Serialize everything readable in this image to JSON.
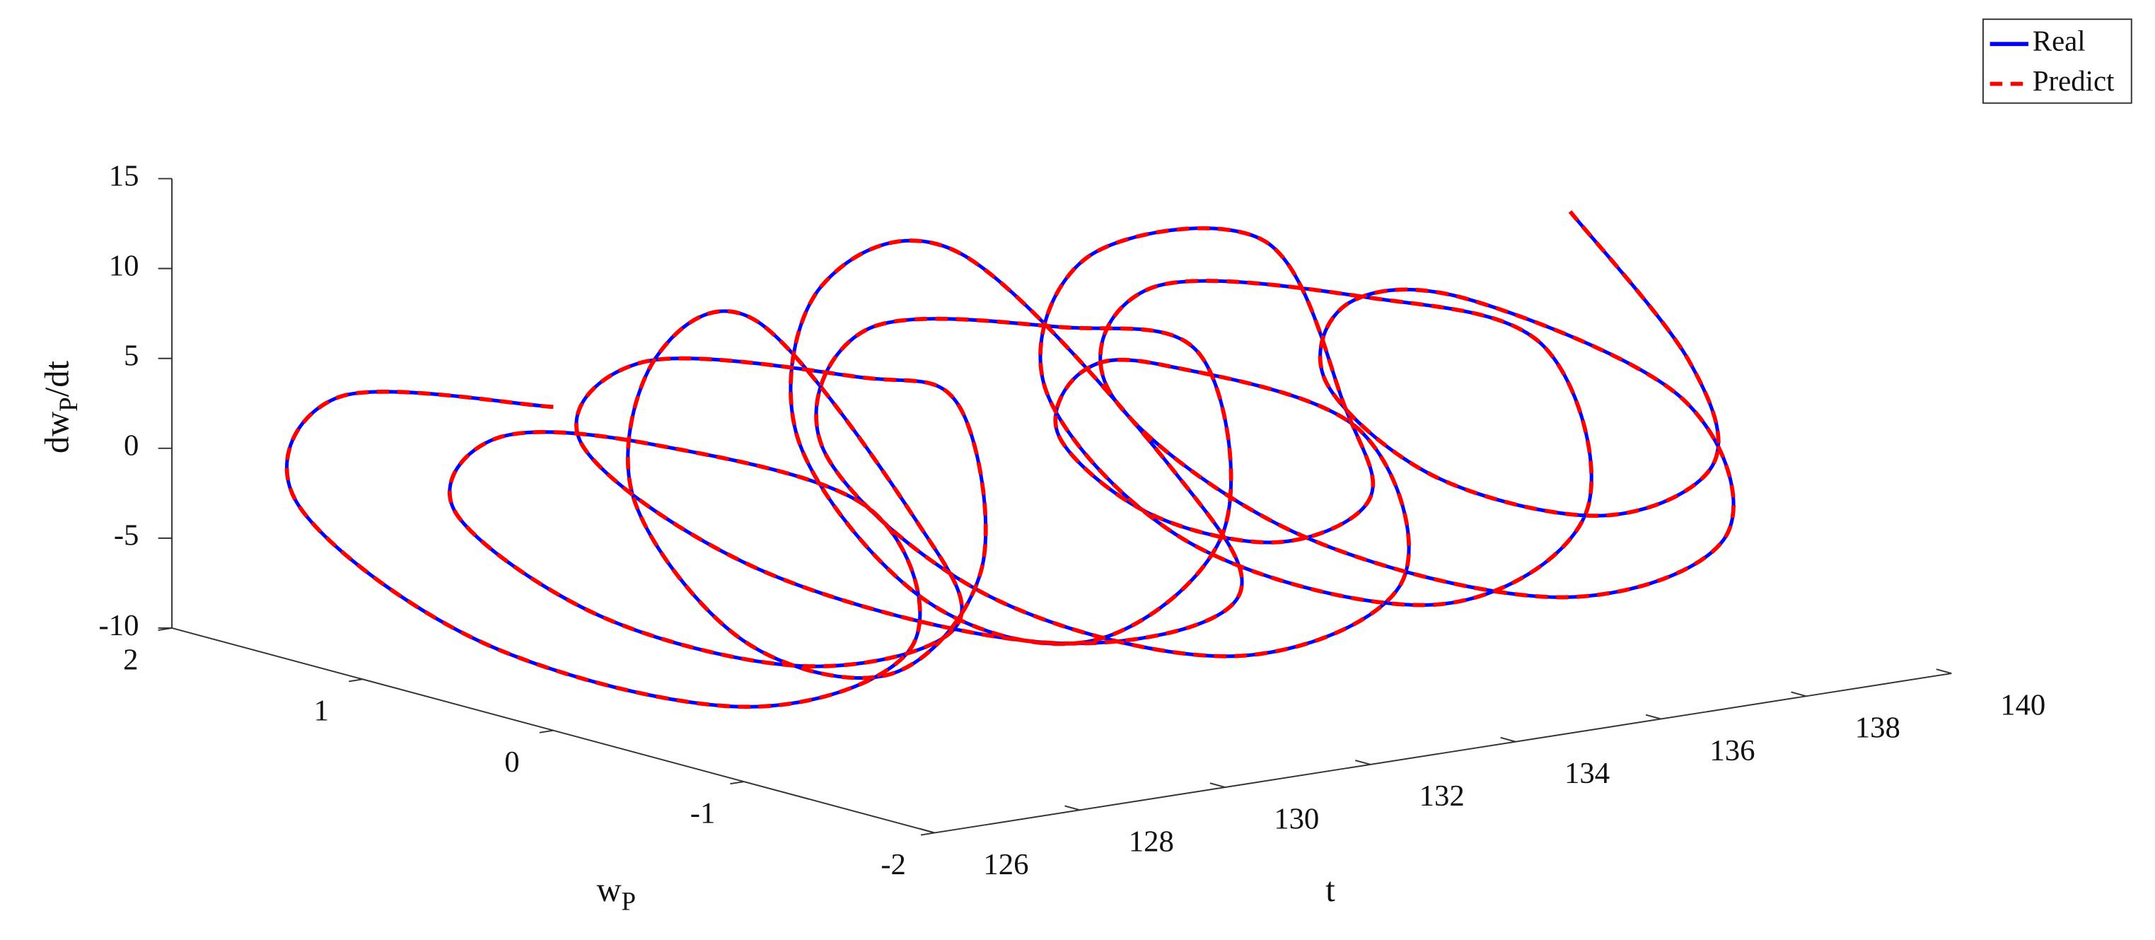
{
  "chart_data": {
    "type": "line3d",
    "xlabel": "t",
    "ylabel": [
      "w",
      "P"
    ],
    "zlabel": [
      "dw",
      "P",
      "/dt"
    ],
    "xlim": [
      126,
      140
    ],
    "xticks": [
      126,
      128,
      130,
      132,
      134,
      136,
      138,
      140
    ],
    "ylim": [
      -2,
      2
    ],
    "yticks": [
      -2,
      -1,
      0,
      1,
      2
    ],
    "zlim": [
      -10,
      15
    ],
    "zticks": [
      -10,
      -5,
      0,
      5,
      10,
      15
    ],
    "legend": "upper right",
    "x": [
      126,
      126.2,
      126.4,
      126.6,
      126.8,
      127,
      127.2,
      127.4,
      127.6,
      127.8,
      128,
      128.2,
      128.4,
      128.6,
      128.8,
      129,
      129.2,
      129.4,
      129.6,
      129.8,
      130,
      130.2,
      130.4,
      130.6,
      130.8,
      131,
      131.2,
      131.4,
      131.6,
      131.8,
      132,
      132.2,
      132.4,
      132.6,
      132.8,
      133,
      133.2,
      133.4,
      133.6,
      133.8,
      134,
      134.2,
      134.4,
      134.6,
      134.8,
      135,
      135.2,
      135.4,
      135.6,
      135.8,
      136,
      136.2,
      136.4,
      136.6,
      136.8,
      137,
      137.2,
      137.4,
      137.6,
      137.8,
      138,
      138.2,
      138.4,
      138.6,
      138.8,
      139,
      139.2,
      139.4,
      139.6,
      139.8,
      140
    ],
    "series": [
      {
        "name": "Real",
        "color": "#0000ff",
        "dash": false,
        "y": [
          0,
          1.2,
          1.5,
          0.6,
          -0.7,
          -1.5,
          -1.2,
          0,
          0.9,
          1.2,
          0.5,
          -0.5,
          -1.2,
          -0.9,
          0,
          0.6,
          0.8,
          0.3,
          -0.4,
          -0.8,
          -0.6,
          0,
          1.2,
          1.6,
          0.7,
          -0.7,
          -1.6,
          -1.2,
          0,
          0.8,
          1.0,
          0.4,
          -0.4,
          -1.0,
          -0.8,
          0,
          1.1,
          1.4,
          0.6,
          -0.6,
          -1.4,
          -1.1,
          0,
          0.5,
          0.7,
          0.3,
          -0.3,
          -0.7,
          -0.5,
          0,
          1.0,
          1.3,
          0.6,
          -0.6,
          -1.3,
          -1.0,
          0,
          1.2,
          1.5,
          0.6,
          -0.7,
          -1.5,
          -1.2,
          0,
          0.7,
          0.9,
          0.4,
          -0.4,
          -0.9,
          -0.7,
          0
        ],
        "values": [
          8,
          5,
          -1.8,
          -7.2,
          -7.2,
          -1.7,
          5,
          5,
          2.7,
          -2.4,
          -6.4,
          -6.4,
          -2.3,
          2.8,
          11,
          7.2,
          -1.3,
          -8,
          -8,
          -1.1,
          7.3,
          7,
          4.3,
          -1.6,
          -6.3,
          -6.3,
          -1.5,
          4.4,
          13,
          8.8,
          -0.5,
          -7.9,
          -7.9,
          -0.3,
          8.9,
          8,
          4.6,
          -3.1,
          -9.1,
          -9.1,
          -2.9,
          4.7,
          5,
          3.1,
          -1.2,
          -4.5,
          -4.5,
          -1.1,
          3.2,
          11,
          7.2,
          -1.3,
          -8,
          -8,
          -1.1,
          7.3,
          7,
          4,
          -2.8,
          -8.2,
          -8.2,
          -2.7,
          4,
          6,
          3.7,
          -1.4,
          -5.4,
          -5.4,
          -1.3,
          3.8,
          10
        ]
      },
      {
        "name": "Predict",
        "color": "#ff0000",
        "dash": true,
        "y": [
          0,
          1.2,
          1.5,
          0.6,
          -0.7,
          -1.5,
          -1.2,
          0,
          0.9,
          1.2,
          0.5,
          -0.5,
          -1.2,
          -0.9,
          0,
          0.6,
          0.8,
          0.3,
          -0.4,
          -0.8,
          -0.6,
          0,
          1.2,
          1.6,
          0.7,
          -0.7,
          -1.6,
          -1.2,
          0,
          0.8,
          1.0,
          0.4,
          -0.4,
          -1.0,
          -0.8,
          0,
          1.1,
          1.4,
          0.6,
          -0.6,
          -1.4,
          -1.1,
          0,
          0.5,
          0.7,
          0.3,
          -0.3,
          -0.7,
          -0.5,
          0,
          1.0,
          1.3,
          0.6,
          -0.6,
          -1.3,
          -1.0,
          0,
          1.2,
          1.5,
          0.6,
          -0.7,
          -1.5,
          -1.2,
          0,
          0.7,
          0.9,
          0.4,
          -0.4,
          -0.9,
          -0.7,
          0
        ],
        "values": [
          8,
          5,
          -1.8,
          -7.2,
          -7.2,
          -1.7,
          5,
          5,
          2.7,
          -2.4,
          -6.4,
          -6.4,
          -2.3,
          2.8,
          11,
          7.2,
          -1.3,
          -8,
          -8,
          -1.1,
          7.3,
          7,
          4.3,
          -1.6,
          -6.3,
          -6.3,
          -1.5,
          4.4,
          13,
          8.8,
          -0.5,
          -7.9,
          -7.9,
          -0.3,
          8.9,
          8,
          4.6,
          -3.1,
          -9.1,
          -9.1,
          -2.9,
          4.7,
          5,
          3.1,
          -1.2,
          -4.5,
          -4.5,
          -1.1,
          3.2,
          11,
          7.2,
          -1.3,
          -8,
          -8,
          -1.1,
          7.3,
          7,
          4,
          -2.8,
          -8.2,
          -8.2,
          -2.7,
          4,
          6,
          3.7,
          -1.4,
          -5.4,
          -5.4,
          -1.3,
          3.8,
          10
        ]
      }
    ]
  }
}
